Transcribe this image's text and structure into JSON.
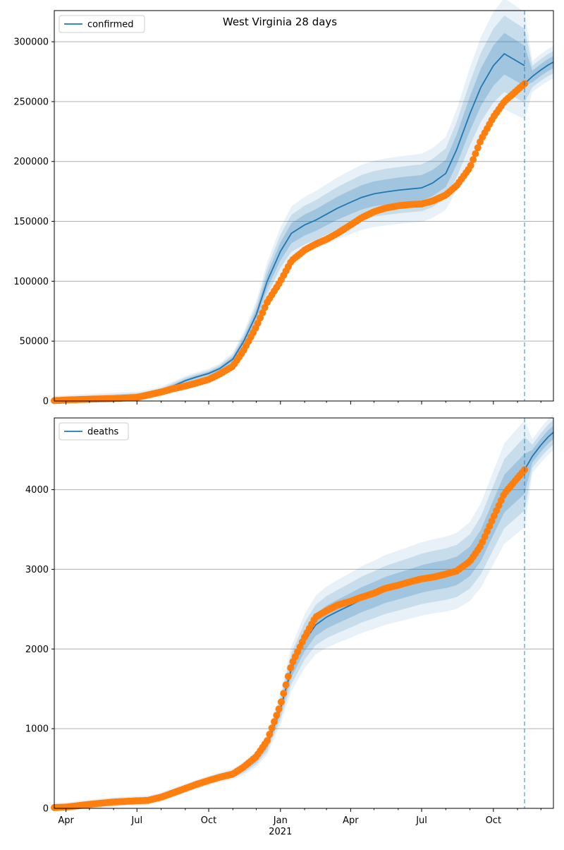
{
  "title": "West Virginia 28 days",
  "colors": {
    "model": "#1f77b4",
    "observed": "#ff7f0e",
    "band": "#1f77b4",
    "grid": "#b0b0b0",
    "divider": "#1f77b4"
  },
  "chart_data": [
    {
      "type": "line",
      "panel": "confirmed",
      "legend": [
        "confirmed"
      ],
      "legend_position": "top-left",
      "grid": "horizontal",
      "ylim": [
        0,
        326000
      ],
      "yticks": [
        0,
        50000,
        100000,
        150000,
        200000,
        250000,
        300000
      ],
      "ytick_labels": [
        "0",
        "50000",
        "100000",
        "150000",
        "200000",
        "250000",
        "300000"
      ],
      "forecast_start": "2021-11-10",
      "observed": {
        "x": [
          "2020-03-17",
          "2020-04-01",
          "2020-05-01",
          "2020-06-01",
          "2020-07-01",
          "2020-07-15",
          "2020-08-01",
          "2020-08-15",
          "2020-09-01",
          "2020-09-15",
          "2020-10-01",
          "2020-10-15",
          "2020-11-01",
          "2020-11-15",
          "2020-12-01",
          "2020-12-15",
          "2021-01-01",
          "2021-01-15",
          "2021-02-01",
          "2021-02-15",
          "2021-03-01",
          "2021-03-15",
          "2021-04-01",
          "2021-04-15",
          "2021-05-01",
          "2021-05-15",
          "2021-06-01",
          "2021-06-15",
          "2021-07-01",
          "2021-07-15",
          "2021-08-01",
          "2021-08-15",
          "2021-09-01",
          "2021-09-15",
          "2021-10-01",
          "2021-10-15",
          "2021-11-10"
        ],
        "y": [
          300,
          800,
          1500,
          2000,
          3000,
          5000,
          7500,
          10000,
          12500,
          15000,
          18000,
          22500,
          29000,
          42500,
          62000,
          82500,
          100000,
          117000,
          126000,
          131000,
          135000,
          140000,
          147000,
          153000,
          158000,
          161000,
          163000,
          164000,
          164500,
          167000,
          172000,
          180000,
          195000,
          218000,
          237000,
          250000,
          265000
        ]
      },
      "model": {
        "x": [
          "2020-03-17",
          "2020-04-01",
          "2020-05-01",
          "2020-06-01",
          "2020-07-01",
          "2020-07-15",
          "2020-08-01",
          "2020-08-15",
          "2020-09-01",
          "2020-09-15",
          "2020-10-01",
          "2020-10-15",
          "2020-11-01",
          "2020-11-15",
          "2020-12-01",
          "2020-12-15",
          "2021-01-01",
          "2021-01-15",
          "2021-02-01",
          "2021-02-15",
          "2021-03-01",
          "2021-03-15",
          "2021-04-01",
          "2021-04-15",
          "2021-05-01",
          "2021-05-15",
          "2021-06-01",
          "2021-06-15",
          "2021-07-01",
          "2021-07-15",
          "2021-08-01",
          "2021-08-15",
          "2021-09-01",
          "2021-09-15",
          "2021-10-01",
          "2021-10-15",
          "2021-11-10"
        ],
        "y": [
          300,
          1000,
          2000,
          3000,
          4000,
          5500,
          8000,
          12000,
          17000,
          20000,
          23000,
          27000,
          35000,
          50000,
          72000,
          100000,
          125000,
          140000,
          147000,
          151000,
          156000,
          161000,
          166000,
          170000,
          173000,
          174500,
          176000,
          177000,
          178000,
          182000,
          190000,
          210000,
          240000,
          262000,
          280000,
          290000,
          280000
        ]
      },
      "forecast": {
        "x": [
          "2021-11-10",
          "2021-11-20",
          "2021-12-01",
          "2021-12-10",
          "2021-12-17"
        ],
        "y": [
          265000,
          271000,
          276500,
          280500,
          283000
        ]
      }
    },
    {
      "type": "line",
      "panel": "deaths",
      "legend": [
        "deaths"
      ],
      "legend_position": "top-left",
      "grid": "horizontal",
      "ylim": [
        0,
        4900
      ],
      "yticks": [
        0,
        1000,
        2000,
        3000,
        4000
      ],
      "ytick_labels": [
        "0",
        "1000",
        "2000",
        "3000",
        "4000"
      ],
      "xtick_labels": [
        "Apr",
        "Jul",
        "Oct",
        "Jan",
        "Apr",
        "Jul",
        "Oct"
      ],
      "xtick_dates": [
        "2020-04-01",
        "2020-07-01",
        "2020-10-01",
        "2021-01-01",
        "2021-04-01",
        "2021-07-01",
        "2021-10-01"
      ],
      "xtick_year_label": "2021",
      "xlim": [
        "2020-03-17",
        "2021-12-17"
      ],
      "forecast_start": "2021-11-10",
      "observed": {
        "x": [
          "2020-03-17",
          "2020-04-01",
          "2020-05-01",
          "2020-06-01",
          "2020-07-01",
          "2020-07-15",
          "2020-08-01",
          "2020-08-15",
          "2020-09-01",
          "2020-09-15",
          "2020-10-01",
          "2020-10-15",
          "2020-11-01",
          "2020-11-15",
          "2020-12-01",
          "2020-12-15",
          "2021-01-01",
          "2021-01-15",
          "2021-02-01",
          "2021-02-15",
          "2021-03-01",
          "2021-03-15",
          "2021-04-01",
          "2021-04-15",
          "2021-05-01",
          "2021-05-15",
          "2021-06-01",
          "2021-06-15",
          "2021-07-01",
          "2021-07-15",
          "2021-08-01",
          "2021-08-15",
          "2021-09-01",
          "2021-09-15",
          "2021-10-01",
          "2021-10-15",
          "2021-11-10"
        ],
        "y": [
          10,
          15,
          50,
          80,
          95,
          100,
          140,
          190,
          250,
          300,
          350,
          390,
          430,
          520,
          650,
          850,
          1300,
          1800,
          2150,
          2400,
          2480,
          2550,
          2600,
          2650,
          2700,
          2760,
          2800,
          2840,
          2880,
          2900,
          2940,
          2980,
          3100,
          3300,
          3650,
          3950,
          4250
        ]
      },
      "model": {
        "x": [
          "2020-03-17",
          "2020-04-01",
          "2020-05-01",
          "2020-06-01",
          "2020-07-01",
          "2020-07-15",
          "2020-08-01",
          "2020-08-15",
          "2020-09-01",
          "2020-09-15",
          "2020-10-01",
          "2020-10-15",
          "2020-11-01",
          "2020-11-15",
          "2020-12-01",
          "2020-12-15",
          "2021-01-01",
          "2021-01-15",
          "2021-02-01",
          "2021-02-15",
          "2021-03-01",
          "2021-03-15",
          "2021-04-01",
          "2021-04-15",
          "2021-05-01",
          "2021-05-15",
          "2021-06-01",
          "2021-06-15",
          "2021-07-01",
          "2021-07-15",
          "2021-08-01",
          "2021-08-15",
          "2021-09-01",
          "2021-09-15",
          "2021-10-01",
          "2021-10-15",
          "2021-11-10"
        ],
        "y": [
          10,
          15,
          50,
          80,
          95,
          100,
          140,
          190,
          250,
          300,
          350,
          390,
          430,
          500,
          620,
          800,
          1250,
          1750,
          2100,
          2300,
          2400,
          2470,
          2550,
          2620,
          2680,
          2740,
          2790,
          2830,
          2880,
          2910,
          2940,
          2980,
          3100,
          3300,
          3650,
          3950,
          4200
        ]
      },
      "forecast": {
        "x": [
          "2021-11-10",
          "2021-11-20",
          "2021-12-01",
          "2021-12-10",
          "2021-12-17"
        ],
        "y": [
          4250,
          4420,
          4560,
          4660,
          4720
        ]
      }
    }
  ]
}
